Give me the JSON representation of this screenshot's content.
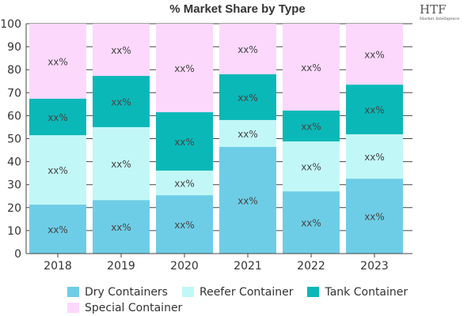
{
  "chart_data": {
    "type": "bar",
    "stacked": true,
    "title": "% Market Share by Type",
    "categories": [
      "2018",
      "2019",
      "2020",
      "2021",
      "2022",
      "2023"
    ],
    "ylim": [
      0,
      100
    ],
    "yticks": [
      0,
      10,
      20,
      30,
      40,
      50,
      60,
      70,
      80,
      90,
      100
    ],
    "grid": "horizontal",
    "legend": "bottom",
    "data_label": "xx%",
    "series": [
      {
        "name": "Dry Containers",
        "color": "#6ecde6",
        "values": [
          21.3,
          23.3,
          25.4,
          46.4,
          27.1,
          32.6
        ]
      },
      {
        "name": "Reefer Container",
        "color": "#c2f7f7",
        "values": [
          30.2,
          31.7,
          10.7,
          11.7,
          21.7,
          19.3
        ]
      },
      {
        "name": "Tank Container",
        "color": "#0bb8b8",
        "values": [
          15.9,
          22.3,
          25.4,
          19.9,
          13.4,
          21.6
        ]
      },
      {
        "name": "Special Container",
        "color": "#fcd8fc",
        "values": [
          32.6,
          22.7,
          38.5,
          22.0,
          37.8,
          26.5
        ]
      }
    ]
  },
  "logo": {
    "text": "HTF",
    "subtext": "Market Intelligence"
  }
}
